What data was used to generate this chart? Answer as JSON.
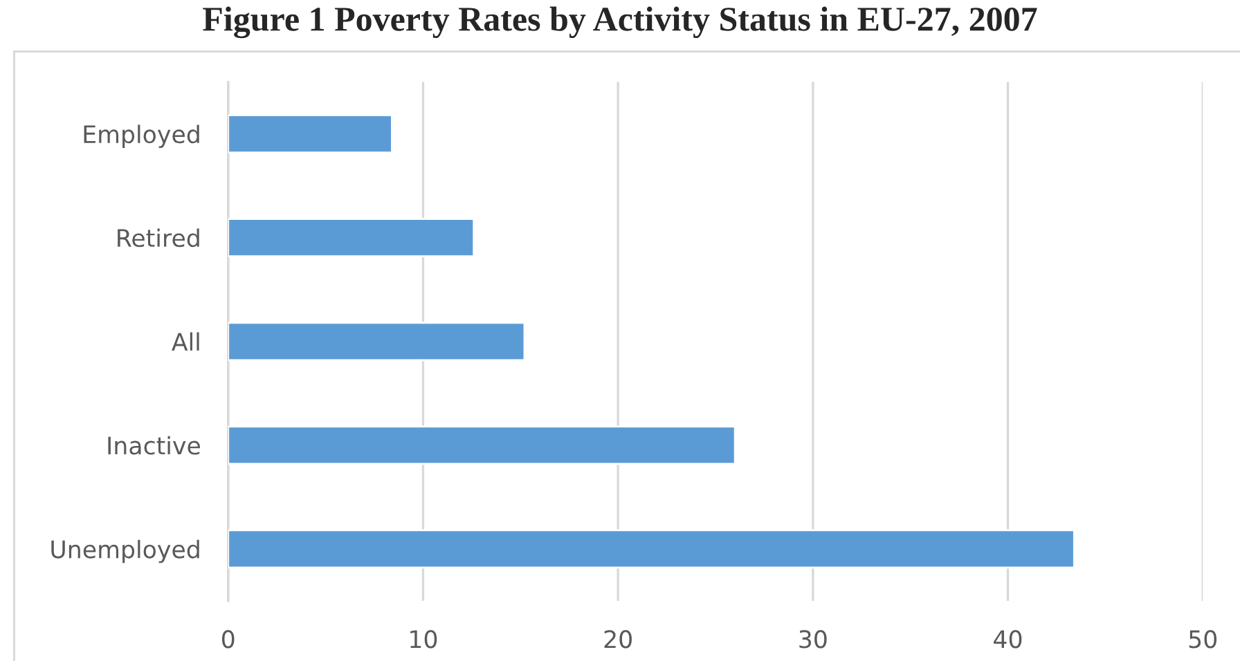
{
  "chart_data": {
    "type": "bar",
    "orientation": "horizontal",
    "title": "Figure 1 Poverty Rates by Activity Status in EU-27, 2007",
    "categories": [
      "Employed",
      "Retired",
      "All",
      "Inactive",
      "Unemployed"
    ],
    "values": [
      8.4,
      12.6,
      15.2,
      26.0,
      43.4
    ],
    "color": "#5b9bd5",
    "xlim": [
      0,
      50
    ],
    "xticks": [
      0,
      10,
      20,
      30,
      40,
      50
    ],
    "grid": "x"
  }
}
